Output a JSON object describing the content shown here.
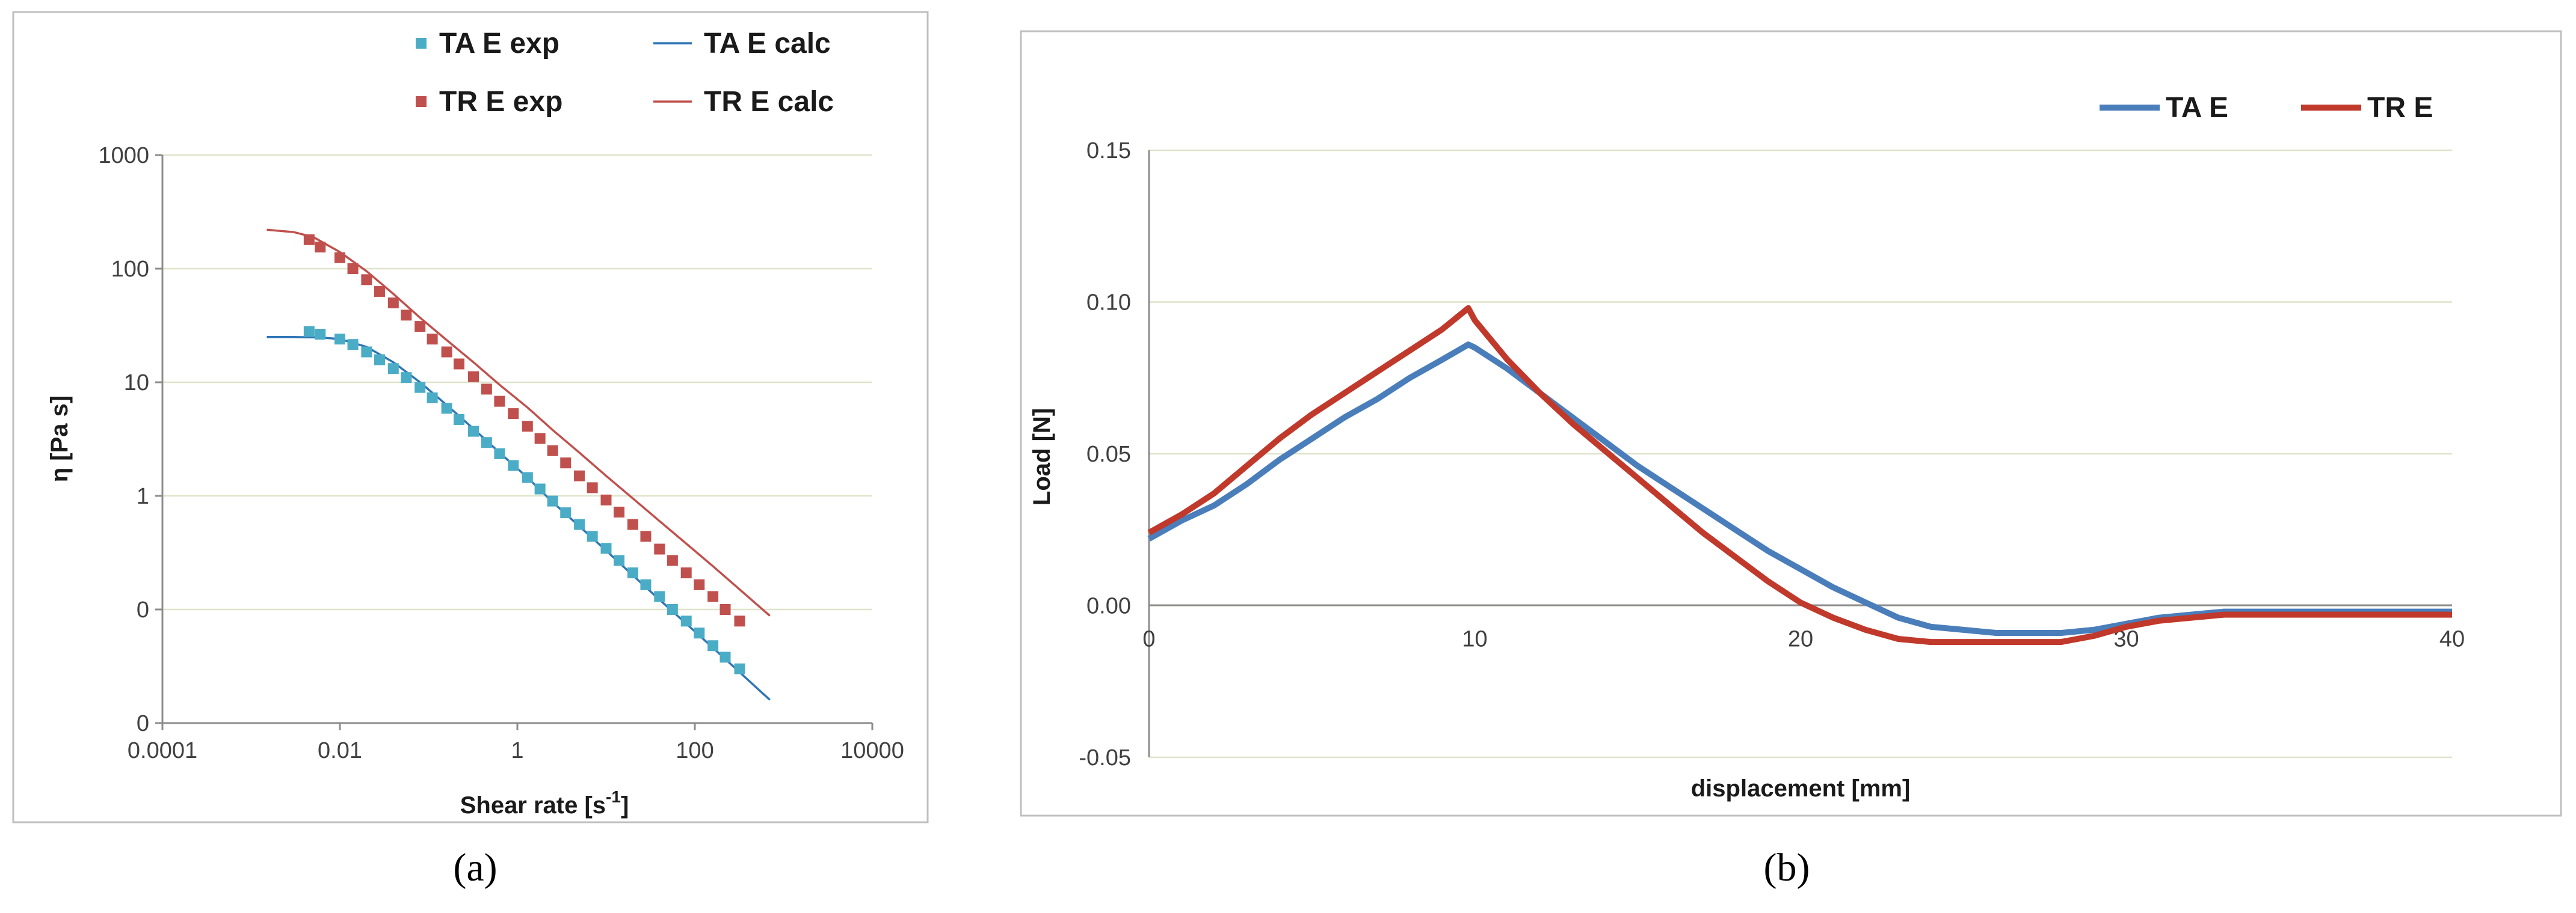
{
  "chart_data": [
    {
      "panel": "a",
      "type": "scatter",
      "xscale": "log",
      "yscale": "log",
      "xlabel": "Shear rate [s-1]",
      "ylabel": "η [Pa s]",
      "xlim": [
        0.0001,
        10000
      ],
      "ylim_decades": [
        -2,
        3
      ],
      "xticks": [
        "0.0001",
        "0.01",
        "1",
        "100",
        "10000"
      ],
      "yticks": [
        "0",
        "0",
        "1",
        "10",
        "100",
        "1000"
      ],
      "legend_position": "top-right",
      "series": [
        {
          "name": "TA E exp",
          "kind": "markers",
          "color": "#4bacc6",
          "x": [
            0.0045,
            0.006,
            0.01,
            0.014,
            0.02,
            0.028,
            0.04,
            0.056,
            0.08,
            0.11,
            0.16,
            0.22,
            0.32,
            0.45,
            0.63,
            0.9,
            1.3,
            1.8,
            2.5,
            3.5,
            5,
            7,
            10,
            14,
            20,
            28,
            40,
            56,
            80,
            112,
            160,
            220,
            320
          ],
          "y": [
            28,
            26.5,
            24,
            21.5,
            18.5,
            15.8,
            13.2,
            11,
            9,
            7.3,
            5.9,
            4.7,
            3.7,
            2.95,
            2.35,
            1.85,
            1.45,
            1.15,
            0.9,
            0.71,
            0.56,
            0.44,
            0.345,
            0.27,
            0.21,
            0.165,
            0.13,
            0.1,
            0.079,
            0.062,
            0.048,
            0.038,
            0.03
          ]
        },
        {
          "name": "TR E exp",
          "kind": "markers",
          "color": "#c0504d",
          "x": [
            0.0045,
            0.006,
            0.01,
            0.014,
            0.02,
            0.028,
            0.04,
            0.056,
            0.08,
            0.11,
            0.16,
            0.22,
            0.32,
            0.45,
            0.63,
            0.9,
            1.3,
            1.8,
            2.5,
            3.5,
            5,
            7,
            10,
            14,
            20,
            28,
            40,
            56,
            80,
            112,
            160,
            220,
            320
          ],
          "y": [
            180,
            155,
            125,
            100,
            80,
            63,
            50,
            39,
            31,
            24,
            18.5,
            14.5,
            11.2,
            8.7,
            6.8,
            5.3,
            4.1,
            3.2,
            2.5,
            1.95,
            1.5,
            1.18,
            0.92,
            0.72,
            0.56,
            0.44,
            0.34,
            0.27,
            0.21,
            0.165,
            0.13,
            0.1,
            0.079
          ]
        },
        {
          "name": "TA E calc",
          "kind": "line",
          "color": "#2e75b6",
          "x": [
            0.0015,
            0.003,
            0.006,
            0.01,
            0.02,
            0.04,
            0.08,
            0.16,
            0.32,
            0.63,
            1.3,
            2.5,
            5,
            10,
            20,
            40,
            80,
            160,
            320,
            700
          ],
          "y": [
            25,
            25,
            24.8,
            24,
            20.5,
            15,
            10,
            6.3,
            3.9,
            2.4,
            1.45,
            0.88,
            0.54,
            0.33,
            0.2,
            0.122,
            0.075,
            0.046,
            0.028,
            0.016
          ]
        },
        {
          "name": "TR E calc",
          "kind": "line",
          "color": "#c0504d",
          "x": [
            0.0015,
            0.003,
            0.005,
            0.01,
            0.02,
            0.04,
            0.08,
            0.16,
            0.32,
            0.63,
            1.3,
            2.5,
            5,
            10,
            20,
            40,
            80,
            160,
            320,
            700
          ],
          "y": [
            220,
            210,
            190,
            140,
            95,
            60,
            37,
            23.5,
            15,
            9.5,
            6,
            3.8,
            2.4,
            1.5,
            0.95,
            0.6,
            0.38,
            0.24,
            0.15,
            0.088
          ]
        }
      ]
    },
    {
      "panel": "b",
      "type": "line",
      "xlabel": "displacement [mm]",
      "ylabel": "Load [N]",
      "xlim": [
        0,
        40
      ],
      "ylim": [
        -0.05,
        0.15
      ],
      "xticks": [
        "0",
        "10",
        "20",
        "30",
        "40"
      ],
      "yticks": [
        "0.15",
        "0.10",
        "0.05",
        "0.00",
        "-0.05"
      ],
      "legend_position": "top-right",
      "series": [
        {
          "name": "TA E",
          "color": "#4a7ebb",
          "x": [
            0,
            1,
            2,
            3,
            4,
            5,
            6,
            7,
            8,
            9,
            9.8,
            10,
            11,
            12,
            13,
            14,
            15,
            16,
            17,
            18,
            19,
            20,
            21,
            22,
            23,
            24,
            25,
            26,
            27,
            28,
            29,
            30,
            31,
            32,
            33,
            34,
            35,
            36,
            37,
            38,
            39,
            40
          ],
          "y": [
            0.022,
            0.028,
            0.033,
            0.04,
            0.048,
            0.055,
            0.062,
            0.068,
            0.075,
            0.081,
            0.086,
            0.085,
            0.078,
            0.07,
            0.062,
            0.054,
            0.046,
            0.039,
            0.032,
            0.025,
            0.018,
            0.012,
            0.006,
            0.001,
            -0.004,
            -0.007,
            -0.008,
            -0.009,
            -0.009,
            -0.009,
            -0.008,
            -0.006,
            -0.004,
            -0.003,
            -0.002,
            -0.002,
            -0.002,
            -0.002,
            -0.002,
            -0.002,
            -0.002,
            -0.002
          ]
        },
        {
          "name": "TR E",
          "color": "#c0392b",
          "x": [
            0,
            1,
            2,
            3,
            4,
            5,
            6,
            7,
            8,
            9,
            9.8,
            10,
            11,
            12,
            13,
            14,
            15,
            16,
            17,
            18,
            19,
            20,
            21,
            22,
            23,
            24,
            25,
            26,
            27,
            28,
            29,
            30,
            31,
            32,
            33,
            34,
            35,
            36,
            37,
            38,
            39,
            40
          ],
          "y": [
            0.024,
            0.03,
            0.037,
            0.046,
            0.055,
            0.063,
            0.07,
            0.077,
            0.084,
            0.091,
            0.098,
            0.094,
            0.081,
            0.07,
            0.06,
            0.051,
            0.042,
            0.033,
            0.024,
            0.016,
            0.008,
            0.001,
            -0.004,
            -0.008,
            -0.011,
            -0.012,
            -0.012,
            -0.012,
            -0.012,
            -0.012,
            -0.01,
            -0.007,
            -0.005,
            -0.004,
            -0.003,
            -0.003,
            -0.003,
            -0.003,
            -0.003,
            -0.003,
            -0.003,
            -0.003
          ]
        }
      ]
    }
  ],
  "panel_labels": [
    "(a)",
    "(b)"
  ]
}
